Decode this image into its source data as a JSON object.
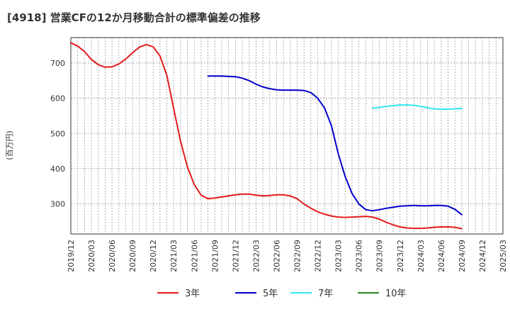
{
  "chart_data": {
    "type": "line",
    "title": "[4918]  営業CFの12か月移動合計の標準偏差の推移",
    "ylabel": "(百万円)",
    "xlabel": "",
    "ylim": [
      215,
      772
    ],
    "yticks": [
      300,
      400,
      500,
      600,
      700
    ],
    "xlim": [
      "2019-12",
      "2025-03"
    ],
    "xticks": [
      "2019/12",
      "2020/03",
      "2020/06",
      "2020/09",
      "2020/12",
      "2021/03",
      "2021/06",
      "2021/09",
      "2021/12",
      "2022/03",
      "2022/06",
      "2022/09",
      "2022/12",
      "2023/03",
      "2023/06",
      "2023/09",
      "2023/12",
      "2024/03",
      "2024/06",
      "2024/09",
      "2024/12",
      "2025/03"
    ],
    "grid": true,
    "legend_position": "bottom",
    "series": [
      {
        "name": "3年",
        "color": "#e41a1c",
        "points": [
          [
            "2019-12",
            757
          ],
          [
            "2020-01",
            748
          ],
          [
            "2020-02",
            732
          ],
          [
            "2020-03",
            710
          ],
          [
            "2020-04",
            695
          ],
          [
            "2020-05",
            688
          ],
          [
            "2020-06",
            689
          ],
          [
            "2020-07",
            697
          ],
          [
            "2020-08",
            711
          ],
          [
            "2020-09",
            729
          ],
          [
            "2020-10",
            745
          ],
          [
            "2020-11",
            752
          ],
          [
            "2020-12",
            746
          ],
          [
            "2021-01",
            720
          ],
          [
            "2021-02",
            665
          ],
          [
            "2021-03",
            570
          ],
          [
            "2021-04",
            478
          ],
          [
            "2021-05",
            405
          ],
          [
            "2021-06",
            355
          ],
          [
            "2021-07",
            325
          ],
          [
            "2021-08",
            315
          ],
          [
            "2021-09",
            317
          ],
          [
            "2021-10",
            320
          ],
          [
            "2021-11",
            323
          ],
          [
            "2021-12",
            326
          ],
          [
            "2022-01",
            328
          ],
          [
            "2022-02",
            328
          ],
          [
            "2022-03",
            325
          ],
          [
            "2022-04",
            323
          ],
          [
            "2022-05",
            324
          ],
          [
            "2022-06",
            326
          ],
          [
            "2022-07",
            326
          ],
          [
            "2022-08",
            323
          ],
          [
            "2022-09",
            315
          ],
          [
            "2022-10",
            300
          ],
          [
            "2022-11",
            288
          ],
          [
            "2022-12",
            278
          ],
          [
            "2023-01",
            271
          ],
          [
            "2023-02",
            266
          ],
          [
            "2023-03",
            263
          ],
          [
            "2023-04",
            262
          ],
          [
            "2023-05",
            263
          ],
          [
            "2023-06",
            264
          ],
          [
            "2023-07",
            265
          ],
          [
            "2023-08",
            263
          ],
          [
            "2023-09",
            257
          ],
          [
            "2023-10",
            248
          ],
          [
            "2023-11",
            241
          ],
          [
            "2023-12",
            235
          ],
          [
            "2024-01",
            232
          ],
          [
            "2024-02",
            231
          ],
          [
            "2024-03",
            231
          ],
          [
            "2024-04",
            232
          ],
          [
            "2024-05",
            234
          ],
          [
            "2024-06",
            235
          ],
          [
            "2024-07",
            235
          ],
          [
            "2024-08",
            234
          ],
          [
            "2024-09",
            230
          ]
        ]
      },
      {
        "name": "5年",
        "color": "#0000cc",
        "points": [
          [
            "2021-08",
            663
          ],
          [
            "2021-09",
            663
          ],
          [
            "2021-10",
            663
          ],
          [
            "2021-11",
            662
          ],
          [
            "2021-12",
            661
          ],
          [
            "2022-01",
            657
          ],
          [
            "2022-02",
            650
          ],
          [
            "2022-03",
            640
          ],
          [
            "2022-04",
            632
          ],
          [
            "2022-05",
            627
          ],
          [
            "2022-06",
            624
          ],
          [
            "2022-07",
            623
          ],
          [
            "2022-08",
            623
          ],
          [
            "2022-09",
            623
          ],
          [
            "2022-10",
            622
          ],
          [
            "2022-11",
            616
          ],
          [
            "2022-12",
            600
          ],
          [
            "2023-01",
            572
          ],
          [
            "2023-02",
            522
          ],
          [
            "2023-03",
            442
          ],
          [
            "2023-04",
            378
          ],
          [
            "2023-05",
            330
          ],
          [
            "2023-06",
            300
          ],
          [
            "2023-07",
            284
          ],
          [
            "2023-08",
            281
          ],
          [
            "2023-09",
            284
          ],
          [
            "2023-10",
            288
          ],
          [
            "2023-11",
            291
          ],
          [
            "2023-12",
            294
          ],
          [
            "2024-01",
            295
          ],
          [
            "2024-02",
            296
          ],
          [
            "2024-03",
            295
          ],
          [
            "2024-04",
            295
          ],
          [
            "2024-05",
            296
          ],
          [
            "2024-06",
            296
          ],
          [
            "2024-07",
            294
          ],
          [
            "2024-08",
            285
          ],
          [
            "2024-09",
            270
          ]
        ]
      },
      {
        "name": "7年",
        "color": "#33e6f0",
        "points": [
          [
            "2023-08",
            572
          ],
          [
            "2023-09",
            574
          ],
          [
            "2023-10",
            577
          ],
          [
            "2023-11",
            579
          ],
          [
            "2023-12",
            581
          ],
          [
            "2024-01",
            581
          ],
          [
            "2024-02",
            580
          ],
          [
            "2024-03",
            577
          ],
          [
            "2024-04",
            573
          ],
          [
            "2024-05",
            570
          ],
          [
            "2024-06",
            569
          ],
          [
            "2024-07",
            569
          ],
          [
            "2024-08",
            570
          ],
          [
            "2024-09",
            571
          ]
        ]
      },
      {
        "name": "10年",
        "color": "#228b22",
        "points": []
      }
    ]
  }
}
